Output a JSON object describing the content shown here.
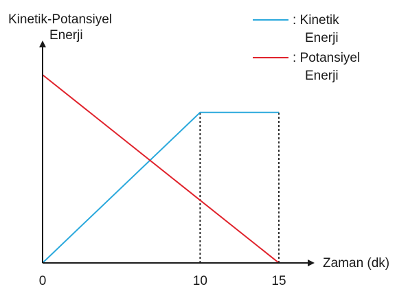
{
  "chart_data": {
    "type": "line",
    "title": "",
    "ylabel": [
      "Kinetik-Potansiyel",
      "Enerji"
    ],
    "xlabel": "Zaman (dk)",
    "x_ticks": [
      "0",
      "10",
      "15"
    ],
    "xlim": [
      0,
      15
    ],
    "ylim": [
      0,
      1.2
    ],
    "grid": false,
    "legend_position": "top-right",
    "series": [
      {
        "name": [
          "Kinetik",
          "Enerji"
        ],
        "legend_prefix": ":",
        "color": "#29a8dc",
        "x": [
          0,
          10,
          15
        ],
        "y": [
          0,
          0.8,
          0.8
        ]
      },
      {
        "name": [
          "Potansiyel",
          "Enerji"
        ],
        "legend_prefix": ":",
        "color": "#e0222b",
        "x": [
          0,
          15
        ],
        "y": [
          1.0,
          0
        ]
      }
    ],
    "reference_lines": [
      {
        "x": 10,
        "from": 0,
        "to": 0.8,
        "style": "dotted"
      },
      {
        "x": 15,
        "from": 0,
        "to": 0.8,
        "style": "dotted"
      }
    ]
  }
}
